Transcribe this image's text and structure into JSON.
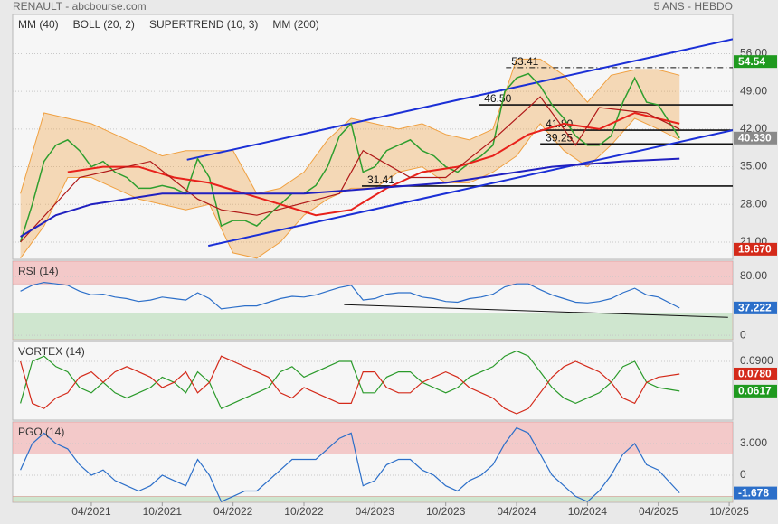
{
  "header": {
    "title": "RENAULT - abcbourse.com",
    "period": "5 ANS - HEBDO"
  },
  "chart_data": [
    {
      "type": "line",
      "xlim": [
        -3.66,
        57.3
      ],
      "ylim": [
        17.8,
        63.3
      ],
      "yticks": [
        {
          "value": 21,
          "label": "21.00"
        },
        {
          "value": 28,
          "label": "28.00"
        },
        {
          "value": 35,
          "label": "35.00"
        },
        {
          "value": 42,
          "label": "42.00"
        },
        {
          "value": 49,
          "label": "49.00"
        },
        {
          "value": 56,
          "label": "56.00"
        }
      ],
      "grid": true,
      "price": {
        "color": "#2e9e2e",
        "x": [
          -3,
          -2,
          -1,
          0,
          1,
          2,
          3,
          4,
          5,
          6,
          7,
          8,
          9,
          10,
          11,
          12,
          13,
          14,
          15,
          16,
          17,
          18,
          19,
          20,
          21,
          22,
          23,
          24,
          25,
          26,
          27,
          28,
          29,
          30,
          31,
          32,
          33,
          34,
          35,
          36,
          37,
          38,
          39,
          40,
          41,
          42,
          43,
          44,
          45,
          46,
          47,
          48,
          49,
          50,
          51,
          52.8
        ],
        "values": [
          21,
          28,
          36,
          39,
          40,
          38,
          35,
          36,
          34,
          33,
          31,
          31,
          31.5,
          31,
          30,
          36.5,
          33,
          24,
          25,
          25,
          24,
          26,
          28,
          30,
          30,
          31.5,
          35,
          40.7,
          43,
          34,
          35,
          38,
          39,
          40,
          38,
          37,
          35,
          34,
          35.7,
          37,
          39,
          49,
          51.5,
          52.3,
          50,
          46.5,
          44,
          40.7,
          39,
          39,
          40.7,
          47,
          51.5,
          47,
          46.5,
          40.33
        ]
      },
      "series": [
        {
          "name": "MM (40)",
          "color": "#e8211b",
          "x": [
            1,
            4,
            7,
            10,
            13,
            16,
            19,
            22,
            25,
            28,
            31,
            34,
            37,
            40,
            43,
            46,
            49,
            52.8
          ],
          "values": [
            34,
            35,
            35,
            33,
            32,
            30,
            28,
            26,
            27,
            31,
            34,
            35,
            37,
            41,
            43,
            42,
            45,
            43
          ]
        },
        {
          "name": "BOLL (20, 2)",
          "color": "#f0a040",
          "x": [
            -3,
            -1,
            1,
            3,
            5,
            7,
            9,
            11,
            13,
            15,
            17,
            19,
            21,
            23,
            25,
            27,
            29,
            31,
            33,
            35,
            37,
            39,
            41,
            43,
            45,
            47,
            49,
            51,
            52.8
          ],
          "upper": [
            30,
            45,
            44,
            43,
            41,
            39,
            37,
            38,
            38,
            38,
            30,
            31,
            34,
            40,
            44,
            43,
            42,
            43,
            41,
            40,
            42,
            55,
            55,
            52,
            47,
            52,
            53,
            53,
            52
          ],
          "lower": [
            18,
            24,
            33,
            33,
            31,
            29,
            28,
            27,
            28,
            19,
            18,
            21,
            26,
            29,
            31,
            31,
            34,
            35,
            32,
            32,
            34,
            37,
            43,
            38,
            35,
            39,
            44,
            42,
            40
          ]
        },
        {
          "name": "SUPERTREND (10, 3)",
          "color": "#b01818",
          "x": [
            -3,
            2,
            8,
            12,
            14,
            17,
            24,
            26,
            30,
            33,
            37,
            41,
            44,
            46,
            50,
            52.8
          ],
          "values": [
            21,
            33,
            36,
            29,
            27,
            26,
            30,
            38,
            33,
            33,
            40,
            48,
            39,
            46,
            45,
            42
          ]
        },
        {
          "name": "MM (200)",
          "color": "#2020c0",
          "x": [
            -3,
            0,
            3,
            6,
            9,
            12,
            15,
            18,
            21,
            24,
            27,
            30,
            33,
            36,
            39,
            42,
            45,
            48,
            52.8
          ],
          "values": [
            22,
            26,
            28,
            29,
            30,
            30,
            30,
            30,
            30,
            30.5,
            31,
            31.5,
            32,
            33,
            34,
            35,
            35.5,
            36,
            36.5
          ]
        }
      ],
      "channel": [
        {
          "color": "#1a2fd6",
          "x": [
            11.1,
            57.3
          ],
          "values": [
            36.3,
            58.7
          ]
        },
        {
          "color": "#1a2fd6",
          "x": [
            12.9,
            57.3
          ],
          "values": [
            20.3,
            41.8
          ]
        }
      ],
      "levels": [
        {
          "value": 53.41,
          "label": "53.41",
          "x": 38.1,
          "style": "dashdot"
        },
        {
          "value": 46.5,
          "label": "46.50",
          "x": 35.8,
          "style": "solid"
        },
        {
          "value": 41.8,
          "label": "41.80",
          "x": 41,
          "style": "solid"
        },
        {
          "value": 39.25,
          "label": "39.25",
          "x": 41,
          "style": "solid"
        },
        {
          "value": 31.41,
          "label": "31.41",
          "x": 25.9,
          "style": "solid"
        }
      ],
      "badges": [
        {
          "value": 54.54,
          "label": "54.54",
          "color": "#1f9a1f"
        },
        {
          "value": 40.33,
          "label": "40.330",
          "color": "#8a8a8a"
        },
        {
          "value": 19.67,
          "label": "19.670",
          "color": "#d42a1a"
        }
      ]
    },
    {
      "type": "line",
      "xlim": [
        -3.66,
        57.3
      ],
      "ylim": [
        -6,
        101
      ],
      "yticks": [
        0,
        {
          "value": 80,
          "label": "80.00"
        }
      ],
      "grid": true,
      "bands": [
        {
          "from": 70,
          "to": 101,
          "color": "#f3c9c9"
        },
        {
          "from": -6,
          "to": 30,
          "color": "#cfe6cf"
        }
      ],
      "series": [
        {
          "name": "RSI (14)",
          "color": "#2c6fc9",
          "x": [
            -3,
            -2,
            -1,
            0,
            1,
            2,
            3,
            4,
            5,
            6,
            7,
            8,
            9,
            10,
            11,
            12,
            13,
            14,
            15,
            16,
            17,
            18,
            19,
            20,
            21,
            22,
            23,
            24,
            25,
            26,
            27,
            28,
            29,
            30,
            31,
            32,
            33,
            34,
            35,
            36,
            37,
            38,
            39,
            40,
            41,
            42,
            43,
            44,
            45,
            46,
            47,
            48,
            49,
            50,
            51,
            52.8
          ],
          "values": [
            60,
            68,
            72,
            70,
            68,
            60,
            55,
            56,
            52,
            50,
            46,
            48,
            52,
            50,
            48,
            58,
            50,
            36,
            38,
            40,
            40,
            45,
            50,
            53,
            52,
            55,
            60,
            65,
            68,
            48,
            50,
            56,
            58,
            58,
            52,
            50,
            46,
            45,
            50,
            52,
            56,
            66,
            70,
            70,
            62,
            55,
            50,
            45,
            44,
            46,
            50,
            58,
            64,
            55,
            52,
            37.222
          ]
        }
      ],
      "trend": {
        "color": "#111111",
        "x": [
          24.4,
          56.9
        ],
        "values": [
          41.7,
          24.4
        ]
      },
      "badges": [
        {
          "value": 37.222,
          "label": "37.222",
          "color": "#2c6fc9"
        }
      ]
    },
    {
      "type": "line",
      "xlim": [
        -3.66,
        57.3
      ],
      "ylim": [
        0.034,
        0.109
      ],
      "yticks": [
        {
          "value": 0.09,
          "label": "0.0900"
        }
      ],
      "grid": true,
      "series": [
        {
          "name": "VORTEX (14)",
          "color": "#2a9a2a",
          "x": [
            -3,
            -2,
            -1,
            0,
            1,
            2,
            3,
            4,
            5,
            6,
            7,
            8,
            9,
            10,
            11,
            12,
            13,
            14,
            15,
            16,
            17,
            18,
            19,
            20,
            21,
            22,
            23,
            24,
            25,
            26,
            27,
            28,
            29,
            30,
            31,
            32,
            33,
            34,
            35,
            36,
            37,
            38,
            39,
            40,
            41,
            42,
            43,
            44,
            45,
            46,
            47,
            48,
            49,
            50,
            51,
            52.8
          ],
          "values": [
            0.05,
            0.09,
            0.095,
            0.085,
            0.08,
            0.065,
            0.06,
            0.07,
            0.06,
            0.055,
            0.06,
            0.065,
            0.075,
            0.07,
            0.06,
            0.08,
            0.07,
            0.045,
            0.05,
            0.055,
            0.06,
            0.065,
            0.08,
            0.085,
            0.075,
            0.08,
            0.085,
            0.09,
            0.09,
            0.06,
            0.06,
            0.075,
            0.08,
            0.08,
            0.07,
            0.065,
            0.06,
            0.065,
            0.075,
            0.08,
            0.085,
            0.095,
            0.1,
            0.095,
            0.08,
            0.065,
            0.055,
            0.05,
            0.055,
            0.06,
            0.07,
            0.085,
            0.09,
            0.07,
            0.065,
            0.0617
          ]
        },
        {
          "color": "#d42a1a",
          "x": [
            -3,
            -2,
            -1,
            0,
            1,
            2,
            3,
            4,
            5,
            6,
            7,
            8,
            9,
            10,
            11,
            12,
            13,
            14,
            15,
            16,
            17,
            18,
            19,
            20,
            21,
            22,
            23,
            24,
            25,
            26,
            27,
            28,
            29,
            30,
            31,
            32,
            33,
            34,
            35,
            36,
            37,
            38,
            39,
            40,
            41,
            42,
            43,
            44,
            45,
            46,
            47,
            48,
            49,
            50,
            51,
            52.8
          ],
          "values": [
            0.09,
            0.05,
            0.045,
            0.055,
            0.06,
            0.075,
            0.08,
            0.07,
            0.08,
            0.085,
            0.08,
            0.075,
            0.065,
            0.07,
            0.08,
            0.06,
            0.07,
            0.095,
            0.09,
            0.085,
            0.08,
            0.075,
            0.06,
            0.055,
            0.065,
            0.06,
            0.055,
            0.05,
            0.05,
            0.08,
            0.08,
            0.065,
            0.06,
            0.06,
            0.07,
            0.075,
            0.08,
            0.075,
            0.065,
            0.06,
            0.055,
            0.045,
            0.04,
            0.045,
            0.06,
            0.075,
            0.085,
            0.09,
            0.085,
            0.08,
            0.07,
            0.055,
            0.05,
            0.07,
            0.075,
            0.078
          ]
        }
      ],
      "badges": [
        {
          "value": 0.078,
          "label": "0.0780",
          "color": "#d42a1a"
        },
        {
          "value": 0.0617,
          "label": "0.0617",
          "color": "#1f9a1f"
        }
      ]
    },
    {
      "type": "line",
      "xlim": [
        -3.66,
        57.3
      ],
      "ylim": [
        -2.57,
        5.06
      ],
      "yticks": [
        0,
        {
          "value": 3,
          "label": "3.000"
        }
      ],
      "grid": true,
      "bands": [
        {
          "from": 2,
          "to": 5.06,
          "color": "#f3c9c9"
        },
        {
          "from": -2.57,
          "to": -2,
          "color": "#cfe6cf"
        }
      ],
      "series": [
        {
          "name": "PGO (14)",
          "color": "#2c6fc9",
          "x": [
            -3,
            -2,
            -1,
            0,
            1,
            2,
            3,
            4,
            5,
            6,
            7,
            8,
            9,
            10,
            11,
            12,
            13,
            14,
            15,
            16,
            17,
            18,
            19,
            20,
            21,
            22,
            23,
            24,
            25,
            26,
            27,
            28,
            29,
            30,
            31,
            32,
            33,
            34,
            35,
            36,
            37,
            38,
            39,
            40,
            41,
            42,
            43,
            44,
            45,
            46,
            47,
            48,
            49,
            50,
            51,
            52.8
          ],
          "values": [
            0.5,
            3,
            4,
            3,
            2.5,
            1,
            0,
            0.5,
            -0.5,
            -1,
            -1.5,
            -1,
            0,
            -0.5,
            -1,
            1.5,
            0,
            -2.5,
            -2,
            -1.5,
            -1.5,
            -0.5,
            0.5,
            1.5,
            1.5,
            1.5,
            2.5,
            3.5,
            4,
            -1,
            -0.5,
            1,
            1.5,
            1.5,
            0.5,
            0,
            -1,
            -1.5,
            -0.5,
            0,
            1,
            3,
            4.5,
            4,
            2,
            0,
            -1,
            -2,
            -2.5,
            -1.5,
            0,
            2,
            3,
            1,
            0.5,
            -1.678
          ]
        }
      ],
      "badges": [
        {
          "value": -1.678,
          "label": "-1.678",
          "color": "#2c6fc9"
        }
      ],
      "xticks": [
        {
          "value": 3,
          "label": "04/2021"
        },
        {
          "value": 9,
          "label": "10/2021"
        },
        {
          "value": 15,
          "label": "04/2022"
        },
        {
          "value": 21,
          "label": "10/2022"
        },
        {
          "value": 27,
          "label": "04/2023"
        },
        {
          "value": 33,
          "label": "10/2023"
        },
        {
          "value": 39,
          "label": "04/2024"
        },
        {
          "value": 45,
          "label": "10/2024"
        },
        {
          "value": 51,
          "label": "04/2025"
        },
        {
          "value": 57,
          "label": "10/2025"
        }
      ]
    }
  ]
}
